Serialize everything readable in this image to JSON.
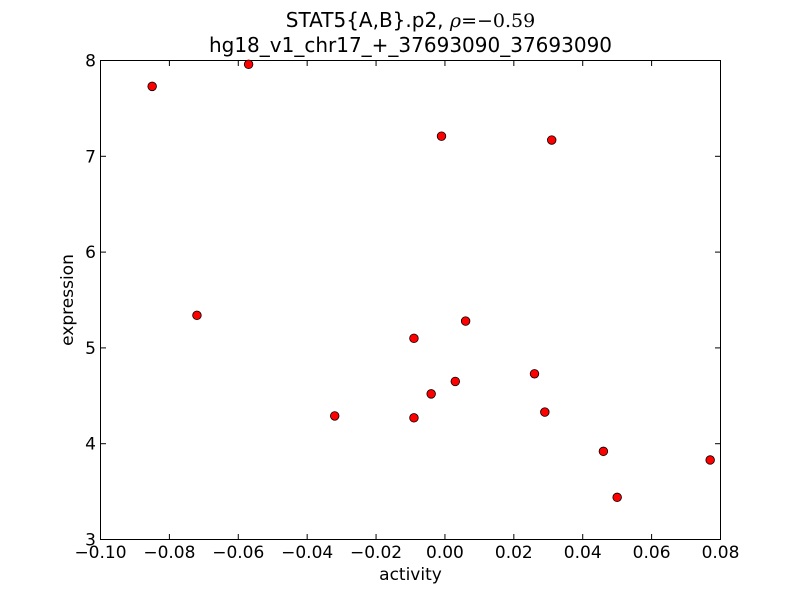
{
  "figure": {
    "title_line1_prefix": "STAT5{A,B}.p2, ",
    "title_rho": "ρ",
    "title_rho_eq": "=−0.59",
    "title_line2": "hg18_v1_chr17_+_37693090_37693090"
  },
  "colors": {
    "background": "#ffffff",
    "axes": "#000000",
    "marker_fill": "#ff0000",
    "marker_edge": "#000000",
    "text": "#000000"
  },
  "chart_data": {
    "type": "scatter",
    "title": "STAT5{A,B}.p2, ρ=−0.59\nhg18_v1_chr17_+_37693090_37693090",
    "xlabel": "activity",
    "ylabel": "expression",
    "xlim": [
      -0.1,
      0.08
    ],
    "ylim": [
      3,
      8
    ],
    "xtick_values": [
      -0.1,
      -0.08,
      -0.06,
      -0.04,
      -0.02,
      0.0,
      0.02,
      0.04,
      0.06,
      0.08
    ],
    "xtick_labels": [
      "−0.10",
      "−0.08",
      "−0.06",
      "−0.04",
      "−0.02",
      "0.00",
      "0.02",
      "0.04",
      "0.06",
      "0.08"
    ],
    "ytick_values": [
      3,
      4,
      5,
      6,
      7,
      8
    ],
    "ytick_labels": [
      "3",
      "4",
      "5",
      "6",
      "7",
      "8"
    ],
    "grid": false,
    "legend": null,
    "marker": {
      "shape": "circle",
      "fill": "#ff0000",
      "edge": "#000000",
      "radius_px": 4.3,
      "edge_width": 0.8
    },
    "points": [
      {
        "x": -0.085,
        "y": 7.73
      },
      {
        "x": -0.057,
        "y": 7.96
      },
      {
        "x": -0.072,
        "y": 5.34
      },
      {
        "x": -0.001,
        "y": 7.21
      },
      {
        "x": 0.031,
        "y": 7.17
      },
      {
        "x": 0.006,
        "y": 5.28
      },
      {
        "x": -0.009,
        "y": 5.1
      },
      {
        "x": 0.003,
        "y": 4.65
      },
      {
        "x": -0.004,
        "y": 4.52
      },
      {
        "x": 0.026,
        "y": 4.73
      },
      {
        "x": 0.029,
        "y": 4.33
      },
      {
        "x": -0.032,
        "y": 4.29
      },
      {
        "x": -0.009,
        "y": 4.27
      },
      {
        "x": 0.046,
        "y": 3.92
      },
      {
        "x": 0.05,
        "y": 3.44
      },
      {
        "x": 0.077,
        "y": 3.83
      }
    ]
  }
}
